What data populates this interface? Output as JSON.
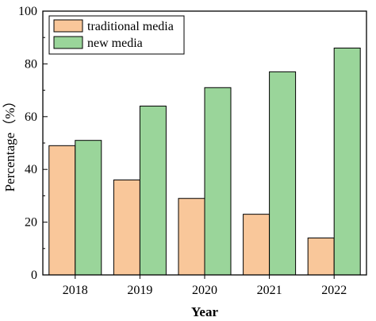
{
  "chart_data": {
    "type": "bar",
    "categories": [
      "2018",
      "2019",
      "2020",
      "2021",
      "2022"
    ],
    "series": [
      {
        "name": "traditional media",
        "values": [
          49,
          36,
          29,
          23,
          14
        ],
        "color": "#F9C79A"
      },
      {
        "name": "new media",
        "values": [
          51,
          64,
          71,
          77,
          86
        ],
        "color": "#9AD59A"
      }
    ],
    "title": "",
    "xlabel": "Year",
    "ylabel": "Percentage（%）",
    "ylim": [
      0,
      100
    ],
    "yticks": [
      "0",
      "20",
      "40",
      "60",
      "80",
      "100"
    ],
    "grid": false,
    "legend_position": "top-left",
    "bar_edge_color": "#000000"
  }
}
